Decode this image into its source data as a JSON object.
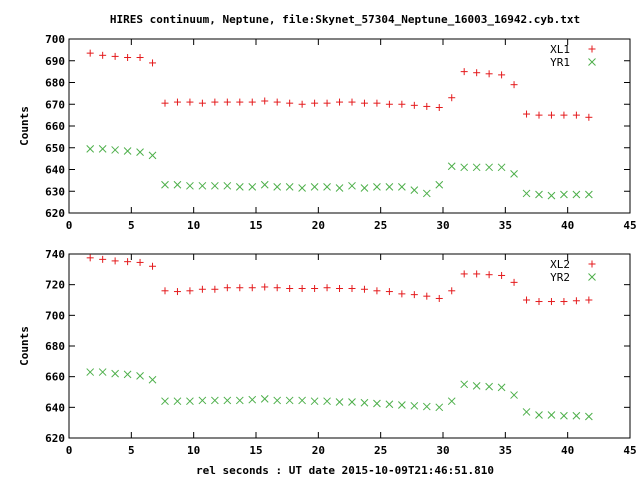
{
  "title": "HIRES continuum, Neptune, file:Skynet_57304_Neptune_16003_16942.cyb.txt",
  "xlabel": "rel seconds : UT date 2015-10-09T21:46:51.810",
  "chart_data": [
    {
      "type": "scatter",
      "ylabel": "Counts",
      "xlim": [
        0,
        45
      ],
      "ylim": [
        620,
        700
      ],
      "xticks": [
        "0",
        "5",
        "10",
        "15",
        "20",
        "25",
        "30",
        "35",
        "40",
        "45"
      ],
      "yticks": [
        "620",
        "630",
        "640",
        "650",
        "660",
        "670",
        "680",
        "690",
        "700"
      ],
      "legend_position": "top-right",
      "series": [
        {
          "name": "XL1",
          "marker": "plus",
          "color": "#e41a1c",
          "x": [
            1.7,
            2.7,
            3.7,
            4.7,
            5.7,
            6.7,
            7.7,
            8.7,
            9.7,
            10.7,
            11.7,
            12.7,
            13.7,
            14.7,
            15.7,
            16.7,
            17.7,
            18.7,
            19.7,
            20.7,
            21.7,
            22.7,
            23.7,
            24.7,
            25.7,
            26.7,
            27.7,
            28.7,
            29.7,
            30.7,
            31.7,
            32.7,
            33.7,
            34.7,
            35.7,
            36.7,
            37.7,
            38.7,
            39.7,
            40.7,
            41.7
          ],
          "y": [
            693.5,
            692.5,
            692,
            691.5,
            691.5,
            689,
            670.5,
            671,
            671,
            670.5,
            671,
            671,
            671,
            671,
            671.5,
            671,
            670.5,
            670,
            670.5,
            670.5,
            671,
            671,
            670.5,
            670.5,
            670,
            670,
            669.5,
            669,
            668.5,
            673,
            685,
            684.5,
            684,
            683.5,
            679,
            665.5,
            665,
            665,
            665,
            665,
            664
          ]
        },
        {
          "name": "YR1",
          "marker": "cross",
          "color": "#4daf4a",
          "x": [
            1.7,
            2.7,
            3.7,
            4.7,
            5.7,
            6.7,
            7.7,
            8.7,
            9.7,
            10.7,
            11.7,
            12.7,
            13.7,
            14.7,
            15.7,
            16.7,
            17.7,
            18.7,
            19.7,
            20.7,
            21.7,
            22.7,
            23.7,
            24.7,
            25.7,
            26.7,
            27.7,
            28.7,
            29.7,
            30.7,
            31.7,
            32.7,
            33.7,
            34.7,
            35.7,
            36.7,
            37.7,
            38.7,
            39.7,
            40.7,
            41.7
          ],
          "y": [
            649.5,
            649.5,
            649,
            648.5,
            648,
            646.5,
            633,
            633,
            632.5,
            632.5,
            632.5,
            632.5,
            632,
            632,
            633,
            632,
            632,
            631.5,
            632,
            632,
            631.5,
            632.5,
            631.5,
            632,
            632,
            632,
            630.5,
            629,
            633,
            641.5,
            641,
            641,
            641,
            641,
            638,
            629,
            628.5,
            628,
            628.5,
            628.5,
            628.5
          ]
        }
      ]
    },
    {
      "type": "scatter",
      "ylabel": "Counts",
      "xlim": [
        0,
        45
      ],
      "ylim": [
        620,
        740
      ],
      "xticks": [
        "0",
        "5",
        "10",
        "15",
        "20",
        "25",
        "30",
        "35",
        "40",
        "45"
      ],
      "yticks": [
        "620",
        "640",
        "660",
        "680",
        "700",
        "720",
        "740"
      ],
      "legend_position": "top-right",
      "series": [
        {
          "name": "XL2",
          "marker": "plus",
          "color": "#e41a1c",
          "x": [
            1.7,
            2.7,
            3.7,
            4.7,
            5.7,
            6.7,
            7.7,
            8.7,
            9.7,
            10.7,
            11.7,
            12.7,
            13.7,
            14.7,
            15.7,
            16.7,
            17.7,
            18.7,
            19.7,
            20.7,
            21.7,
            22.7,
            23.7,
            24.7,
            25.7,
            26.7,
            27.7,
            28.7,
            29.7,
            30.7,
            31.7,
            32.7,
            33.7,
            34.7,
            35.7,
            36.7,
            37.7,
            38.7,
            39.7,
            40.7,
            41.7
          ],
          "y": [
            737.5,
            736.5,
            735.5,
            735,
            734.5,
            732,
            716,
            715.5,
            716,
            717,
            717,
            718,
            718,
            718,
            718.5,
            718,
            717.5,
            717.5,
            717.5,
            718,
            717.5,
            717.5,
            717,
            716,
            715.5,
            714,
            713.5,
            712.5,
            711,
            716,
            727,
            727,
            726.5,
            726,
            721.5,
            710,
            709,
            709,
            709,
            709.5,
            710
          ]
        },
        {
          "name": "YR2",
          "marker": "cross",
          "color": "#4daf4a",
          "x": [
            1.7,
            2.7,
            3.7,
            4.7,
            5.7,
            6.7,
            7.7,
            8.7,
            9.7,
            10.7,
            11.7,
            12.7,
            13.7,
            14.7,
            15.7,
            16.7,
            17.7,
            18.7,
            19.7,
            20.7,
            21.7,
            22.7,
            23.7,
            24.7,
            25.7,
            26.7,
            27.7,
            28.7,
            29.7,
            30.7,
            31.7,
            32.7,
            33.7,
            34.7,
            35.7,
            36.7,
            37.7,
            38.7,
            39.7,
            40.7,
            41.7
          ],
          "y": [
            663,
            663,
            662,
            661.5,
            660.5,
            658,
            644,
            644,
            644,
            644.5,
            644.5,
            644.5,
            644.5,
            645,
            645.5,
            644.5,
            644.5,
            644.5,
            644,
            644,
            643.5,
            643.5,
            643,
            642.5,
            642,
            641.5,
            641,
            640.5,
            640,
            644,
            655,
            654,
            653.5,
            653,
            648,
            637,
            635,
            635,
            634.5,
            634.5,
            634
          ]
        }
      ]
    }
  ]
}
